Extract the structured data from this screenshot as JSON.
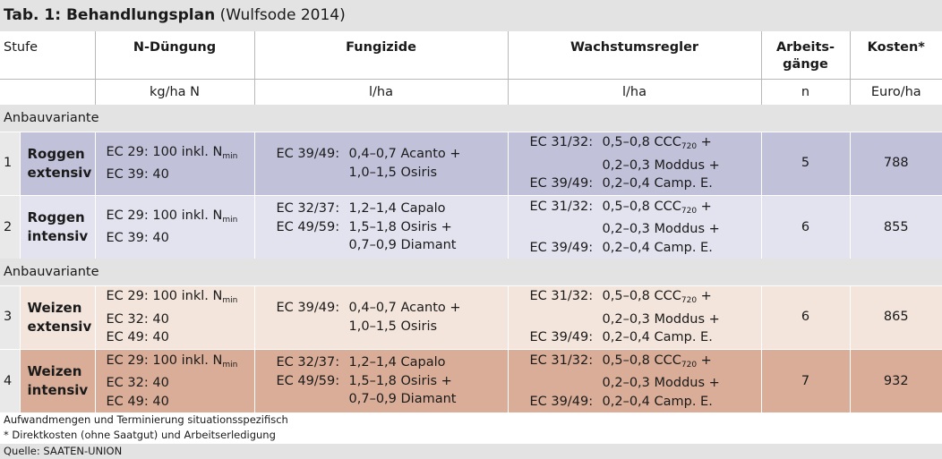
{
  "title": {
    "bold": "Tab. 1: Behandlungsplan",
    "normal": "(Wulfsode 2014)"
  },
  "headers": {
    "stufe": "Stufe",
    "n_duengung": "N-Düngung",
    "fungizide": "Fungizide",
    "wachstumsregler": "Wachstumsregler",
    "arbeitsgaenge_1": "Arbeits-",
    "arbeitsgaenge_2": "gänge",
    "kosten": "Kosten*"
  },
  "units": {
    "n_duengung": "kg/ha N",
    "fungizide": "l/ha",
    "wachstumsregler": "l/ha",
    "arbeitsgaenge": "n",
    "kosten": "Euro/ha"
  },
  "sections": {
    "s1": "Anbauvariante",
    "s2": "Anbauvariante"
  },
  "rows": [
    {
      "num": "1",
      "crop_1": "Roggen",
      "crop_2": "extensiv",
      "n_1": "EC 29: 100 inkl. N",
      "n_1_sub": "min",
      "n_2": "EC 39: 40",
      "n_3": "",
      "f_1a": "EC 39/49:",
      "f_1b": "0,4–0,7 Acanto +",
      "f_2a": "",
      "f_2b": "1,0–1,5 Osiris",
      "f_3a": "",
      "f_3b": "",
      "w_1a": "EC 31/32:",
      "w_1b": "0,5–0,8 CCC",
      "w_1_sub": "720",
      "w_1c": " +",
      "w_2b": "0,2–0,3 Moddus +",
      "w_3a": "EC 39/49:",
      "w_3b": "0,2–0,4 Camp. E.",
      "arbeitsgaenge": "5",
      "kosten": "788"
    },
    {
      "num": "2",
      "crop_1": "Roggen",
      "crop_2": "intensiv",
      "n_1": "EC 29: 100 inkl. N",
      "n_1_sub": "min",
      "n_2": "EC 39: 40",
      "n_3": "",
      "f_1a": "EC 32/37:",
      "f_1b": "1,2–1,4 Capalo",
      "f_2a": "EC 49/59:",
      "f_2b": "1,5–1,8 Osiris +",
      "f_3a": "",
      "f_3b": "0,7–0,9 Diamant",
      "w_1a": "EC 31/32:",
      "w_1b": "0,5–0,8 CCC",
      "w_1_sub": "720",
      "w_1c": " +",
      "w_2b": "0,2–0,3 Moddus +",
      "w_3a": "EC 39/49:",
      "w_3b": "0,2–0,4 Camp. E.",
      "arbeitsgaenge": "6",
      "kosten": "855"
    },
    {
      "num": "3",
      "crop_1": "Weizen",
      "crop_2": "extensiv",
      "n_1": "EC 29: 100 inkl. N",
      "n_1_sub": "min",
      "n_2": "EC 32: 40",
      "n_3": "EC 49: 40",
      "f_1a": "EC 39/49:",
      "f_1b": "0,4–0,7 Acanto +",
      "f_2a": "",
      "f_2b": "1,0–1,5 Osiris",
      "f_3a": "",
      "f_3b": "",
      "w_1a": "EC 31/32:",
      "w_1b": "0,5–0,8 CCC",
      "w_1_sub": "720",
      "w_1c": " +",
      "w_2b": "0,2–0,3 Moddus +",
      "w_3a": "EC 39/49:",
      "w_3b": "0,2–0,4 Camp. E.",
      "arbeitsgaenge": "6",
      "kosten": "865"
    },
    {
      "num": "4",
      "crop_1": "Weizen",
      "crop_2": "intensiv",
      "n_1": "EC 29: 100 inkl. N",
      "n_1_sub": "min",
      "n_2": "EC 32: 40",
      "n_3": "EC 49: 40",
      "f_1a": "EC 32/37:",
      "f_1b": "1,2–1,4 Capalo",
      "f_2a": "EC 49/59:",
      "f_2b": "1,5–1,8 Osiris +",
      "f_3a": "",
      "f_3b": "0,7–0,9 Diamant",
      "w_1a": "EC 31/32:",
      "w_1b": "0,5–0,8 CCC",
      "w_1_sub": "720",
      "w_1c": " +",
      "w_2b": "0,2–0,3 Moddus +",
      "w_3a": "EC 39/49:",
      "w_3b": "0,2–0,4 Camp. E.",
      "arbeitsgaenge": "7",
      "kosten": "932"
    }
  ],
  "footnotes": {
    "f1": "Aufwandmengen und Terminierung situationsspezifisch",
    "f2": "* Direktkosten (ohne Saatgut) und Arbeitserledigung",
    "source": "Quelle: SAATEN-UNION"
  },
  "colors": {
    "row1": "#c1c2da",
    "row2": "#e2e3ef",
    "row3": "#f4e5dc",
    "row4": "#d9ad97",
    "band": "#e3e3e3"
  }
}
